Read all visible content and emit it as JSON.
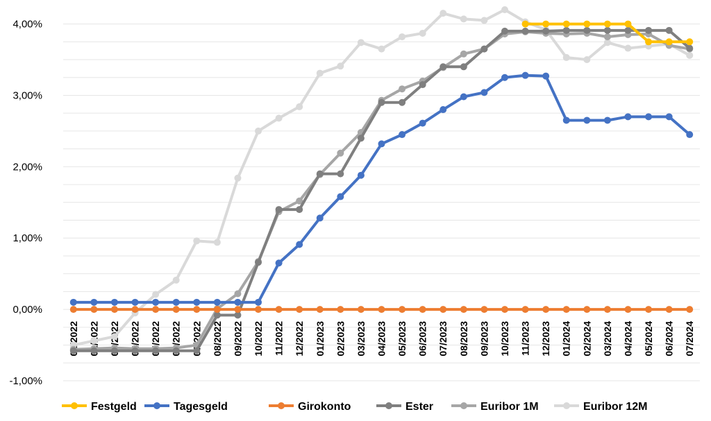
{
  "chart_data": {
    "type": "line",
    "title": "",
    "xlabel": "",
    "ylabel": "",
    "ylim": [
      -1,
      4.2
    ],
    "y_ticks": [
      {
        "value": -1,
        "label": "-1,00%"
      },
      {
        "value": 0,
        "label": "0,00%"
      },
      {
        "value": 1,
        "label": "1,00%"
      },
      {
        "value": 2,
        "label": "2,00%"
      },
      {
        "value": 3,
        "label": "3,00%"
      },
      {
        "value": 4,
        "label": "4,00%"
      }
    ],
    "categories": [
      "01/2022",
      "02/2022",
      "03/2022",
      "04/2022",
      "05/2022",
      "06/2022",
      "07/2022",
      "08/2022",
      "09/2022",
      "10/2022",
      "11/2022",
      "12/2022",
      "01/2023",
      "02/2023",
      "03/2023",
      "04/2023",
      "05/2023",
      "06/2023",
      "07/2023",
      "08/2023",
      "09/2023",
      "10/2023",
      "11/2023",
      "12/2023",
      "01/2024",
      "02/2024",
      "03/2024",
      "04/2024",
      "05/2024",
      "06/2024",
      "07/2024"
    ],
    "legend_position": "bottom",
    "series": [
      {
        "name": "Euribor 12M",
        "color": "#D9D9D9",
        "values": [
          -0.5,
          -0.44,
          -0.38,
          -0.05,
          0.21,
          0.41,
          0.96,
          0.94,
          1.84,
          2.5,
          2.68,
          2.84,
          3.31,
          3.41,
          3.74,
          3.65,
          3.82,
          3.87,
          4.15,
          4.07,
          4.05,
          4.2,
          4.03,
          3.92,
          3.53,
          3.5,
          3.74,
          3.66,
          3.69,
          3.72,
          3.56
        ]
      },
      {
        "name": "Euribor 1M",
        "color": "#A6A6A6",
        "values": [
          -0.56,
          -0.55,
          -0.54,
          -0.55,
          -0.55,
          -0.54,
          -0.5,
          0.01,
          0.22,
          0.67,
          1.37,
          1.52,
          1.89,
          2.19,
          2.48,
          2.93,
          3.09,
          3.2,
          3.39,
          3.58,
          3.65,
          3.86,
          3.89,
          3.87,
          3.86,
          3.87,
          3.82,
          3.85,
          3.86,
          3.7,
          3.65
        ]
      },
      {
        "name": "Ester",
        "color": "#7F7F7F",
        "values": [
          -0.58,
          -0.58,
          -0.58,
          -0.58,
          -0.58,
          -0.58,
          -0.58,
          -0.08,
          -0.08,
          0.66,
          1.4,
          1.4,
          1.9,
          1.9,
          2.4,
          2.9,
          2.9,
          3.15,
          3.4,
          3.4,
          3.65,
          3.9,
          3.9,
          3.9,
          3.91,
          3.91,
          3.91,
          3.91,
          3.91,
          3.91,
          3.66
        ]
      },
      {
        "name": "Girokonto",
        "color": "#ED7D31",
        "values": [
          0,
          0,
          0,
          0,
          0,
          0,
          0,
          0,
          0,
          0,
          0,
          0,
          0,
          0,
          0,
          0,
          0,
          0,
          0,
          0,
          0,
          0,
          0,
          0,
          0,
          0,
          0,
          0,
          0,
          0,
          0
        ]
      },
      {
        "name": "Tagesgeld",
        "color": "#4472C4",
        "values": [
          0.1,
          0.1,
          0.1,
          0.1,
          0.1,
          0.1,
          0.1,
          0.1,
          0.1,
          0.1,
          0.65,
          0.91,
          1.28,
          1.58,
          1.88,
          2.32,
          2.45,
          2.61,
          2.8,
          2.98,
          3.04,
          3.25,
          3.28,
          3.27,
          2.65,
          2.65,
          2.65,
          2.7,
          2.7,
          2.7,
          2.45
        ]
      },
      {
        "name": "Festgeld",
        "color": "#FFC000",
        "values": [
          null,
          null,
          null,
          null,
          null,
          null,
          null,
          null,
          null,
          null,
          null,
          null,
          null,
          null,
          null,
          null,
          null,
          null,
          null,
          null,
          null,
          null,
          4.0,
          4.0,
          4.0,
          4.0,
          4.0,
          4.0,
          3.75,
          3.75,
          3.75
        ]
      }
    ],
    "legend": [
      {
        "name": "Festgeld",
        "color": "#FFC000"
      },
      {
        "name": "Tagesgeld",
        "color": "#4472C4"
      },
      {
        "name": "Girokonto",
        "color": "#ED7D31"
      },
      {
        "name": "Ester",
        "color": "#7F7F7F"
      },
      {
        "name": "Euribor 1M",
        "color": "#A6A6A6"
      },
      {
        "name": "Euribor 12M",
        "color": "#D9D9D9"
      }
    ]
  }
}
